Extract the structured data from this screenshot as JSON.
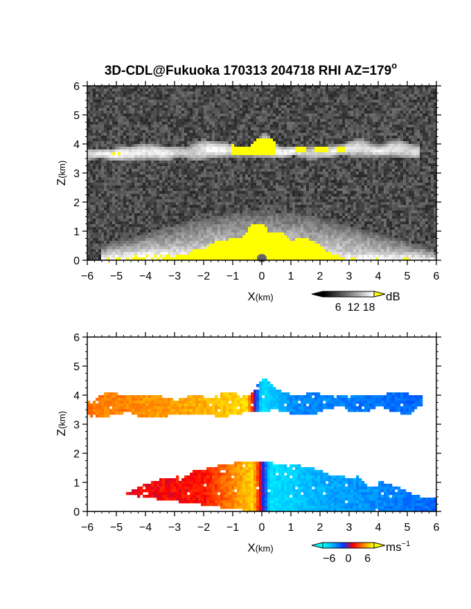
{
  "figure": {
    "title": "3D-CDL@Fukuoka 170313 204718 RHI AZ=179",
    "title_superscript": "o"
  },
  "chart_data": [
    {
      "type": "heatmap",
      "id": "reflectivity",
      "xlabel": "X",
      "xlabel_unit": "(km)",
      "ylabel": "Z",
      "ylabel_unit": "(km)",
      "xlim": [
        -6,
        6
      ],
      "ylim": [
        0,
        6
      ],
      "xticks": [
        -6,
        -5,
        -4,
        -3,
        -2,
        -1,
        0,
        1,
        2,
        3,
        4,
        5,
        6
      ],
      "yticks": [
        0,
        1,
        2,
        3,
        4,
        5,
        6
      ],
      "colorbar": {
        "unit": "dB",
        "ticks": [
          6,
          12,
          18
        ],
        "range": [
          0,
          20
        ],
        "colors": [
          "#000000",
          "#3a3a3a",
          "#777777",
          "#b8b8b8",
          "#ffffff",
          "#ffff00"
        ]
      },
      "features": {
        "upper_layer": {
          "x": [
            -6,
            5.4
          ],
          "z_bottom": [
            3.45,
            3.55
          ],
          "z_top": [
            3.95,
            4.1
          ],
          "peak": {
            "x": 0.1,
            "z": 4.5
          }
        },
        "saturated_patches": [
          {
            "x": [
              -1,
              0.5
            ],
            "z": [
              3.6,
              4.2
            ]
          },
          {
            "x": [
              1.1,
              1.5
            ],
            "z": [
              3.7,
              4.0
            ]
          },
          {
            "x": [
              1.8,
              2.3
            ],
            "z": [
              3.7,
              4.0
            ]
          },
          {
            "x": [
              2.6,
              2.9
            ],
            "z": [
              3.7,
              3.95
            ]
          }
        ],
        "lower_layer": {
          "x": [
            -5.5,
            6
          ],
          "z_max": 1.5,
          "saturated_center": {
            "x": [
              -3,
              3
            ],
            "z": [
              0,
              1.2
            ]
          }
        }
      }
    },
    {
      "type": "heatmap",
      "id": "doppler_velocity",
      "xlabel": "X",
      "xlabel_unit": "(km)",
      "ylabel": "Z",
      "ylabel_unit": "(km)",
      "xlim": [
        -6,
        6
      ],
      "ylim": [
        0,
        6
      ],
      "xticks": [
        -6,
        -5,
        -4,
        -3,
        -2,
        -1,
        0,
        1,
        2,
        3,
        4,
        5,
        6
      ],
      "yticks": [
        0,
        1,
        2,
        3,
        4,
        5,
        6
      ],
      "colorbar": {
        "unit": "ms",
        "unit_superscript": "−1",
        "ticks": [
          "−6",
          "0",
          "6"
        ],
        "range": [
          -8,
          8
        ],
        "colors": [
          "#00ffff",
          "#00aaff",
          "#0033ff",
          "#ff0000",
          "#ff8000",
          "#ffff00"
        ]
      },
      "features": {
        "upper_layer": {
          "x": [
            -6,
            5.5
          ],
          "z_bottom": [
            3.3,
            3.5
          ],
          "z_top": [
            3.95,
            4.1
          ],
          "velocity_by_x": [
            [
              -6,
              4.5
            ],
            [
              -2,
              6
            ],
            [
              -0.5,
              7
            ],
            [
              0,
              -7
            ],
            [
              1,
              -4
            ],
            [
              5.5,
              -3
            ]
          ]
        },
        "lower_layer": {
          "x": [
            -5.2,
            6
          ],
          "z_max": 1.7,
          "velocity_by_x": [
            [
              -5.2,
              1.5
            ],
            [
              -2,
              2
            ],
            [
              -0.3,
              7
            ],
            [
              0.3,
              -7
            ],
            [
              2,
              -5
            ],
            [
              6,
              -3
            ]
          ]
        }
      }
    }
  ]
}
